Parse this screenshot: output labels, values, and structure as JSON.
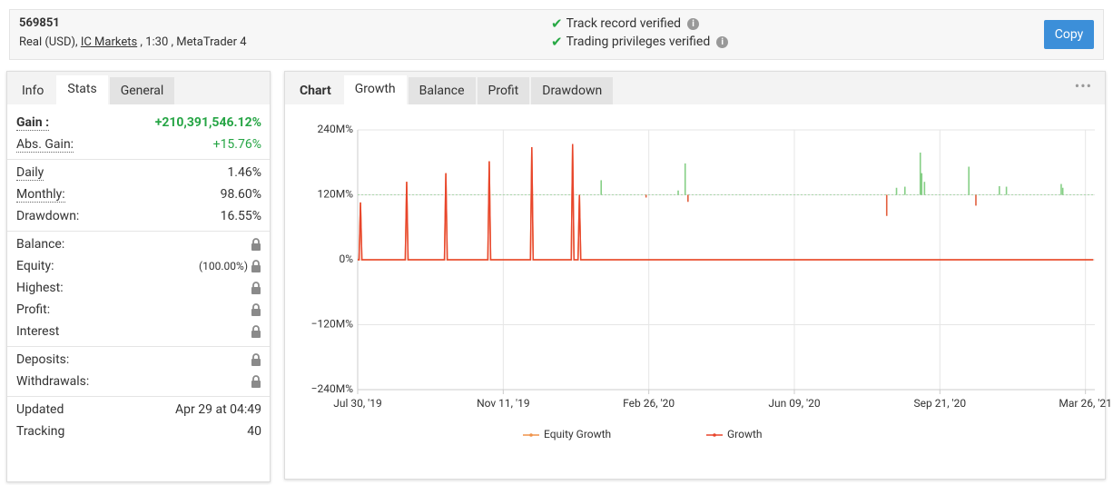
{
  "header": {
    "account_id": "569851",
    "account_parts": [
      "Real (USD), ",
      "IC Markets",
      " , 1:30 , MetaTrader 4"
    ],
    "verifications": [
      "Track record verified",
      "Trading privileges verified"
    ],
    "copy_button": "Copy"
  },
  "left_panel": {
    "tabs": [
      "Info",
      "Stats",
      "General"
    ],
    "active_tab": 1,
    "groups": [
      [
        {
          "label": "Gain :",
          "value": "+210,391,546.12%",
          "bold": true,
          "underlined": true,
          "value_color": "#26a545"
        },
        {
          "label": "Abs. Gain:",
          "value": "+15.76%",
          "underlined": true,
          "value_color": "#26a545"
        }
      ],
      [
        {
          "label": "Daily",
          "value": "1.46%",
          "underlined": true
        },
        {
          "label": "Monthly:",
          "value": "98.60%",
          "underlined": true
        },
        {
          "label": "Drawdown:",
          "value": "16.55%"
        }
      ],
      [
        {
          "label": "Balance:",
          "locked": true
        },
        {
          "label": "Equity:",
          "value": "(100.00%)",
          "locked": true
        },
        {
          "label": "Highest:",
          "locked": true
        },
        {
          "label": "Profit:",
          "locked": true
        },
        {
          "label": "Interest",
          "locked": true
        }
      ],
      [
        {
          "label": "Deposits:",
          "locked": true
        },
        {
          "label": "Withdrawals:",
          "locked": true
        }
      ],
      [
        {
          "label": "Updated",
          "value": "Apr 29 at 04:49"
        },
        {
          "label": "Tracking",
          "value": "40"
        }
      ]
    ]
  },
  "chart_tabs": {
    "tabs": [
      "Chart",
      "Growth",
      "Balance",
      "Profit",
      "Drawdown"
    ],
    "active_tab": 1
  },
  "chart_data": {
    "type": "line",
    "x": [
      "2019-07-30",
      "2019-07-31",
      "2019-08-01",
      "2019-08-02",
      "2019-09-02",
      "2019-09-03",
      "2019-09-04",
      "2019-09-30",
      "2019-10-01",
      "2019-10-02",
      "2019-10-31",
      "2019-11-01",
      "2019-11-02",
      "2019-12-01",
      "2019-12-02",
      "2019-12-03",
      "2019-12-31",
      "2020-01-01",
      "2020-01-02",
      "2020-01-05",
      "2020-01-06",
      "2020-01-07",
      "2021-04-05"
    ],
    "series": [
      {
        "name": "Equity Growth",
        "color": "#f0934a",
        "values": [
          0,
          0,
          106000000,
          0,
          0,
          144000000,
          0,
          0,
          160000000,
          0,
          0,
          182000000,
          0,
          0,
          208000000,
          0,
          0,
          214000000,
          0,
          0,
          120000000,
          0,
          0
        ]
      },
      {
        "name": "Growth",
        "color": "#e8452c",
        "values": [
          0,
          0,
          106000000,
          0,
          0,
          144000000,
          0,
          0,
          160000000,
          0,
          0,
          182000000,
          0,
          0,
          208000000,
          0,
          0,
          214000000,
          0,
          0,
          120000000,
          0,
          0
        ]
      }
    ],
    "bars": {
      "base": 120000000,
      "up_color": "#86cf86",
      "down_color": "#e2603f",
      "x": [
        "2020-01-22",
        "2020-02-24",
        "2020-03-18",
        "2020-03-23",
        "2020-03-25",
        "2020-08-14",
        "2020-08-21",
        "2020-08-27",
        "2020-09-07",
        "2020-09-08",
        "2020-09-10",
        "2020-10-28",
        "2020-11-06",
        "2020-12-06",
        "2020-12-15",
        "2021-02-23",
        "2021-02-25"
      ],
      "values": [
        147000000,
        115000000,
        128000000,
        178000000,
        107000000,
        81000000,
        133000000,
        135000000,
        198000000,
        160000000,
        144000000,
        172000000,
        100000000,
        136000000,
        135000000,
        140000000,
        133000000
      ]
    },
    "ylim": [
      -240000000,
      240000000
    ],
    "yticks": [
      {
        "value": 240000000,
        "label": "240M%"
      },
      {
        "value": 120000000,
        "label": "120M%"
      },
      {
        "value": 0,
        "label": "0%"
      },
      {
        "value": -120000000,
        "label": "−120M%"
      },
      {
        "value": -240000000,
        "label": "−240M%"
      }
    ],
    "xlim": [
      "2019-07-30",
      "2021-04-07"
    ],
    "xticks": [
      {
        "value": "2019-07-30",
        "label": "Jul 30, '19"
      },
      {
        "value": "2019-11-11",
        "label": "Nov 11, '19"
      },
      {
        "value": "2020-02-26",
        "label": "Feb 26, '20"
      },
      {
        "value": "2020-06-09",
        "label": "Jun 09, '20"
      },
      {
        "value": "2020-09-21",
        "label": "Sep 21, '20"
      },
      {
        "value": "2021-03-26",
        "label": "Mar 26, '21"
      }
    ],
    "grid": true
  }
}
